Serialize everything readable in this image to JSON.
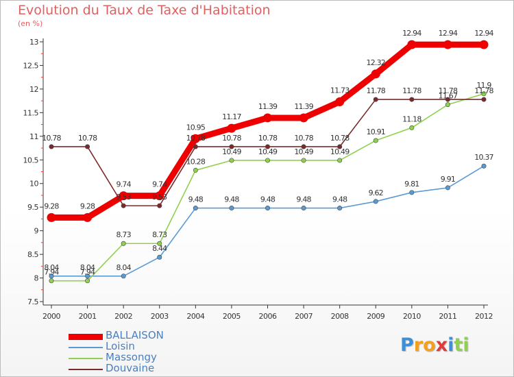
{
  "title": "Evolution du Taux de Taxe d'Habitation",
  "unit_label": "(en %)",
  "chart_data": {
    "type": "line",
    "title": "Evolution du Taux de Taxe d'Habitation",
    "ylabel": "(en %)",
    "xlabel": "",
    "ylim": [
      7.5,
      13
    ],
    "yticks": [
      "7.5",
      "8",
      "8.5",
      "9",
      "9.5",
      "10",
      "10.5",
      "11",
      "11.5",
      "12",
      "12.5",
      "13"
    ],
    "grid": false,
    "legend_position": "bottom-left",
    "categories": [
      "2000",
      "2001",
      "2002",
      "2003",
      "2004",
      "2005",
      "2006",
      "2007",
      "2008",
      "2009",
      "2010",
      "2011",
      "2012"
    ],
    "series": [
      {
        "name": "BALLAISON",
        "color": "#ee0000",
        "thick": true,
        "values": [
          9.28,
          9.28,
          9.74,
          9.74,
          10.95,
          11.17,
          11.39,
          11.39,
          11.73,
          12.32,
          12.94,
          12.94,
          12.94
        ],
        "labels": [
          "9.28",
          "9.28",
          "9.74",
          "9.74",
          "10.95",
          "11.17",
          "11.39",
          "11.39",
          "11.73",
          "12.32",
          "12.94",
          "12.94",
          "12.94"
        ]
      },
      {
        "name": "Loisin",
        "color": "#5a9ad3",
        "thick": false,
        "values": [
          8.04,
          8.04,
          8.04,
          8.44,
          9.48,
          9.48,
          9.48,
          9.48,
          9.48,
          9.62,
          9.81,
          9.91,
          10.37
        ],
        "labels": [
          "8.04",
          "8.04",
          "8.04",
          "8.44",
          "9.48",
          "9.48",
          "9.48",
          "9.48",
          "9.48",
          "9.62",
          "9.81",
          "9.91",
          "10.37"
        ]
      },
      {
        "name": "Massongy",
        "color": "#8fd14f",
        "thick": false,
        "values": [
          7.94,
          7.94,
          8.73,
          8.73,
          10.28,
          10.49,
          10.49,
          10.49,
          10.49,
          10.91,
          11.18,
          11.67,
          11.9
        ],
        "labels": [
          "7.94",
          "7.94",
          "8.73",
          "8.73",
          "10.28",
          "10.49",
          "10.49",
          "10.49",
          "10.49",
          "10.91",
          "11.18",
          "11.67",
          "11.9"
        ]
      },
      {
        "name": "Douvaine",
        "color": "#7b2a2a",
        "thick": false,
        "values": [
          10.78,
          10.78,
          9.53,
          9.53,
          10.78,
          10.78,
          10.78,
          10.78,
          10.78,
          11.78,
          11.78,
          11.78,
          11.78
        ],
        "labels": [
          "10.78",
          "10.78",
          "9.53",
          "9.53",
          "10.78",
          "10.78",
          "10.78",
          "10.78",
          "10.78",
          "11.78",
          "11.78",
          "11.78",
          "11.78"
        ]
      }
    ]
  },
  "legend": [
    {
      "label": "BALLAISON",
      "color": "#ee0000"
    },
    {
      "label": "Loisin",
      "color": "#5a9ad3"
    },
    {
      "label": "Massongy",
      "color": "#8fd14f"
    },
    {
      "label": "Douvaine",
      "color": "#7b2a2a"
    }
  ],
  "logo": {
    "letters": [
      "P",
      "r",
      "o",
      "x",
      "i",
      "t",
      "i"
    ],
    "colors": [
      "#3d8fd8",
      "#f2a01e",
      "#f2a01e",
      "#e03a3a",
      "#3d8fd8",
      "#8fd14f",
      "#8fd14f"
    ]
  }
}
